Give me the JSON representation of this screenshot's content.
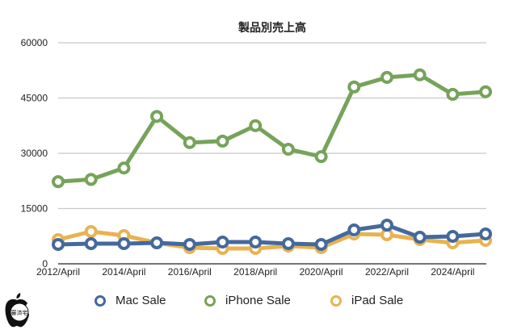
{
  "chart_data": {
    "type": "line",
    "title": "製品別売上高",
    "xlabel": "",
    "ylabel": "",
    "ylim": [
      0,
      60000
    ],
    "yticks": [
      0,
      15000,
      30000,
      45000,
      60000
    ],
    "grid": true,
    "legend_position": "bottom",
    "x": [
      "2012/April",
      "2013/April",
      "2014/April",
      "2015/April",
      "2016/April",
      "2017/April",
      "2018/April",
      "2019/April",
      "2020/April",
      "2021/April",
      "2022/April",
      "2023/April",
      "2024/April",
      "2025/April"
    ],
    "xtick_labels": [
      "2012/April",
      "2014/April",
      "2016/April",
      "2018/April",
      "2020/April",
      "2022/April",
      "2024/April"
    ],
    "series": [
      {
        "name": "Mac Sale",
        "color": "#44699e",
        "values": [
          5260,
          5480,
          5480,
          5700,
          5260,
          5910,
          5910,
          5480,
          5260,
          9200,
          10500,
          7230,
          7450,
          8100
        ]
      },
      {
        "name": "iPhone Sale",
        "color": "#76a35a",
        "values": [
          22300,
          22900,
          26000,
          40000,
          32900,
          33300,
          37500,
          31100,
          29100,
          48000,
          50600,
          51300,
          46000,
          46700
        ]
      },
      {
        "name": "iPad Sale",
        "color": "#e9b251",
        "values": [
          6570,
          8760,
          7670,
          5700,
          4380,
          4160,
          4160,
          4820,
          4380,
          8100,
          7890,
          6570,
          5700,
          6350
        ]
      }
    ]
  },
  "legend": {
    "items": [
      {
        "label": "Mac Sale",
        "color": "#44699e"
      },
      {
        "label": "iPhone Sale",
        "color": "#76a35a"
      },
      {
        "label": "iPad Sale",
        "color": "#e9b251"
      }
    ]
  },
  "logo": {
    "stamp_text": "審済宅"
  }
}
